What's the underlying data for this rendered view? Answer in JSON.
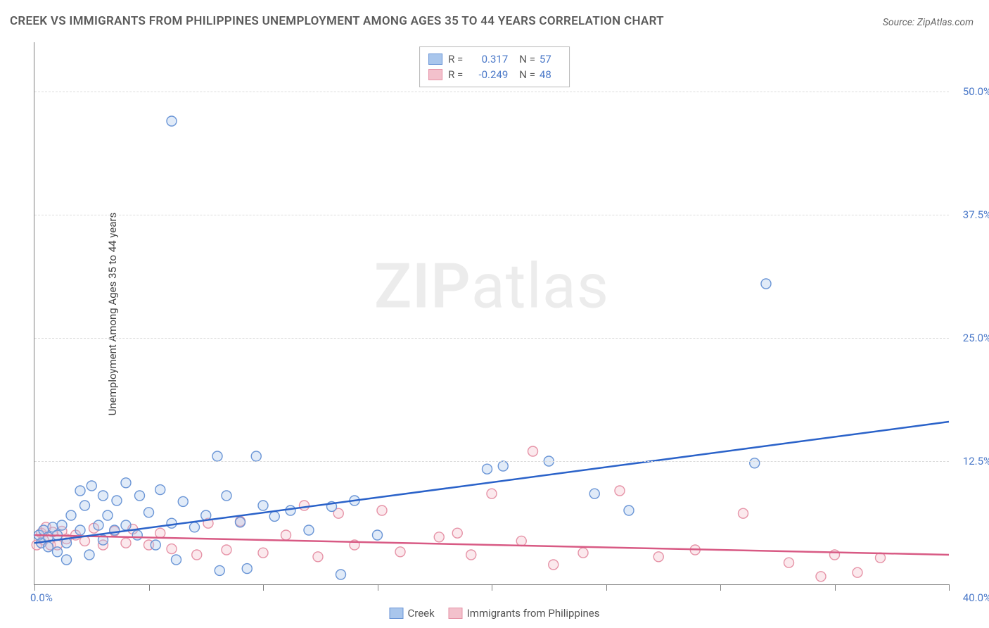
{
  "title": "CREEK VS IMMIGRANTS FROM PHILIPPINES UNEMPLOYMENT AMONG AGES 35 TO 44 YEARS CORRELATION CHART",
  "source": "Source: ZipAtlas.com",
  "y_axis_title": "Unemployment Among Ages 35 to 44 years",
  "watermark_bold": "ZIP",
  "watermark_light": "atlas",
  "chart": {
    "type": "scatter",
    "xlim": [
      0,
      40
    ],
    "ylim": [
      0,
      55
    ],
    "x_origin_label": "0.0%",
    "x_end_label": "40.0%",
    "x_tick_positions": [
      0,
      5,
      10,
      15,
      20,
      25,
      30,
      35,
      40
    ],
    "y_grid": [
      {
        "value": 12.5,
        "label": "12.5%"
      },
      {
        "value": 25.0,
        "label": "25.0%"
      },
      {
        "value": 37.5,
        "label": "37.5%"
      },
      {
        "value": 50.0,
        "label": "50.0%"
      }
    ],
    "background_color": "#ffffff",
    "grid_color": "#dcdcdc",
    "axis_color": "#808080",
    "tick_label_color": "#4a78c8",
    "marker_radius": 7,
    "marker_stroke_width": 1.4,
    "marker_fill_opacity": 0.35,
    "line_width": 2.5,
    "series": [
      {
        "id": "creek",
        "name": "Creek",
        "fill_color": "#a9c6ec",
        "stroke_color": "#6a95d6",
        "line_color": "#2a62c9",
        "R": "0.317",
        "N": "57",
        "trend": {
          "x1": 0,
          "y1": 4.2,
          "x2": 40,
          "y2": 16.5
        },
        "points": [
          [
            0.2,
            5.0
          ],
          [
            0.3,
            4.2
          ],
          [
            0.4,
            5.5
          ],
          [
            0.6,
            3.8
          ],
          [
            0.6,
            4.8
          ],
          [
            0.8,
            5.8
          ],
          [
            1.0,
            3.3
          ],
          [
            1.0,
            5.0
          ],
          [
            1.2,
            6.0
          ],
          [
            1.4,
            2.5
          ],
          [
            1.4,
            4.2
          ],
          [
            1.6,
            7.0
          ],
          [
            2.0,
            5.5
          ],
          [
            2.0,
            9.5
          ],
          [
            2.2,
            8.0
          ],
          [
            2.4,
            3.0
          ],
          [
            2.5,
            10.0
          ],
          [
            2.8,
            6.0
          ],
          [
            3.0,
            9.0
          ],
          [
            3.0,
            4.5
          ],
          [
            3.2,
            7.0
          ],
          [
            3.5,
            5.5
          ],
          [
            3.6,
            8.5
          ],
          [
            4.0,
            6.0
          ],
          [
            4.0,
            10.3
          ],
          [
            4.5,
            5.0
          ],
          [
            4.6,
            9.0
          ],
          [
            5.0,
            7.3
          ],
          [
            5.3,
            4.0
          ],
          [
            5.5,
            9.6
          ],
          [
            6.0,
            6.2
          ],
          [
            6.2,
            2.5
          ],
          [
            6.5,
            8.4
          ],
          [
            7.0,
            5.8
          ],
          [
            7.5,
            7.0
          ],
          [
            8.1,
            1.4
          ],
          [
            8.0,
            13.0
          ],
          [
            8.4,
            9.0
          ],
          [
            9.0,
            6.3
          ],
          [
            9.3,
            1.6
          ],
          [
            9.7,
            13.0
          ],
          [
            10.0,
            8.0
          ],
          [
            10.5,
            6.9
          ],
          [
            11.2,
            7.5
          ],
          [
            12.0,
            5.5
          ],
          [
            13.0,
            7.9
          ],
          [
            13.4,
            1.0
          ],
          [
            14.0,
            8.5
          ],
          [
            15.0,
            5.0
          ],
          [
            19.8,
            11.7
          ],
          [
            20.5,
            12.0
          ],
          [
            22.5,
            12.5
          ],
          [
            24.5,
            9.2
          ],
          [
            26.0,
            7.5
          ],
          [
            31.5,
            12.3
          ],
          [
            32.0,
            30.5
          ],
          [
            6.0,
            47.0
          ]
        ]
      },
      {
        "id": "philippines",
        "name": "Immigrants from Philippines",
        "fill_color": "#f3c1cc",
        "stroke_color": "#e693a7",
        "line_color": "#d85a84",
        "R": "-0.249",
        "N": "48",
        "trend": {
          "x1": 0,
          "y1": 5.0,
          "x2": 40,
          "y2": 3.0
        },
        "points": [
          [
            0.1,
            4.0
          ],
          [
            0.3,
            5.2
          ],
          [
            0.4,
            4.5
          ],
          [
            0.5,
            5.8
          ],
          [
            0.7,
            4.0
          ],
          [
            0.8,
            5.3
          ],
          [
            1.0,
            4.0
          ],
          [
            1.2,
            5.4
          ],
          [
            1.4,
            4.6
          ],
          [
            1.8,
            5.0
          ],
          [
            2.2,
            4.4
          ],
          [
            2.6,
            5.7
          ],
          [
            3.0,
            4.0
          ],
          [
            3.5,
            5.4
          ],
          [
            4.0,
            4.2
          ],
          [
            4.3,
            5.6
          ],
          [
            5.0,
            4.0
          ],
          [
            5.5,
            5.2
          ],
          [
            6.0,
            3.6
          ],
          [
            7.1,
            3.0
          ],
          [
            7.6,
            6.2
          ],
          [
            8.4,
            3.5
          ],
          [
            9.0,
            6.4
          ],
          [
            10.0,
            3.2
          ],
          [
            11.0,
            5.0
          ],
          [
            11.8,
            8.0
          ],
          [
            12.4,
            2.8
          ],
          [
            13.3,
            7.2
          ],
          [
            14.0,
            4.0
          ],
          [
            15.2,
            7.5
          ],
          [
            16.0,
            3.3
          ],
          [
            17.7,
            4.8
          ],
          [
            18.5,
            5.2
          ],
          [
            19.1,
            3.0
          ],
          [
            20.0,
            9.2
          ],
          [
            21.3,
            4.4
          ],
          [
            21.8,
            13.5
          ],
          [
            22.7,
            2.0
          ],
          [
            24.0,
            3.2
          ],
          [
            25.6,
            9.5
          ],
          [
            27.3,
            2.8
          ],
          [
            28.9,
            3.5
          ],
          [
            31.0,
            7.2
          ],
          [
            33.0,
            2.2
          ],
          [
            34.4,
            0.8
          ],
          [
            35.0,
            3.0
          ],
          [
            36.0,
            1.2
          ],
          [
            37.0,
            2.7
          ]
        ]
      }
    ]
  },
  "legend_top": {
    "R_label": "R =",
    "N_label": "N ="
  },
  "legend_bottom": [
    "Creek",
    "Immigrants from Philippines"
  ]
}
